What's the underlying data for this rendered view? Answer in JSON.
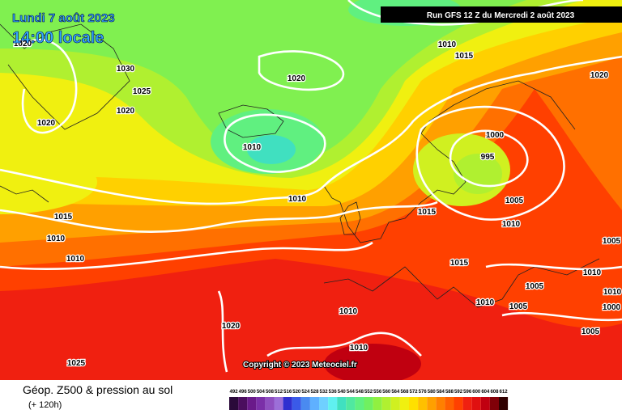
{
  "header": {
    "date": "Lundi 7 août 2023",
    "time": "14:00 locale",
    "run": "Run GFS 12 Z du Mercredi 2 août 2023"
  },
  "map": {
    "copyright": "Copyright © 2023 Meteociel.fr",
    "isobar_labels": [
      1020,
      1030,
      1025,
      1020,
      1020,
      1020,
      1010,
      1015,
      1020,
      1010,
      1000,
      995,
      1010,
      1015,
      1015,
      1005,
      1010,
      1010,
      1010,
      1005,
      1015,
      1010,
      1005,
      1010,
      1010,
      1005,
      1010,
      1000,
      1020,
      1005,
      1010,
      1025
    ]
  },
  "legend": {
    "title": "Géop. Z500 & pression au sol",
    "subtitle": "(+ 120h)",
    "scale": [
      {
        "value": 492,
        "color": "#2a0a3a"
      },
      {
        "value": 496,
        "color": "#4b0e5e"
      },
      {
        "value": 500,
        "color": "#6a1a8a"
      },
      {
        "value": 504,
        "color": "#7b2fa8"
      },
      {
        "value": 508,
        "color": "#8f4fc0"
      },
      {
        "value": 512,
        "color": "#9c6fd8"
      },
      {
        "value": 516,
        "color": "#2f2fd0"
      },
      {
        "value": 520,
        "color": "#3a5ae8"
      },
      {
        "value": 524,
        "color": "#4a8af0"
      },
      {
        "value": 528,
        "color": "#5fb0ff"
      },
      {
        "value": 532,
        "color": "#6fd0ff"
      },
      {
        "value": 536,
        "color": "#60f0f0"
      },
      {
        "value": 540,
        "color": "#40e0c0"
      },
      {
        "value": 544,
        "color": "#50e8a0"
      },
      {
        "value": 548,
        "color": "#60f080"
      },
      {
        "value": 552,
        "color": "#70f060"
      },
      {
        "value": 556,
        "color": "#90f040"
      },
      {
        "value": 560,
        "color": "#b0f030"
      },
      {
        "value": 564,
        "color": "#d0f020"
      },
      {
        "value": 568,
        "color": "#f0f010"
      },
      {
        "value": 572,
        "color": "#ffe000"
      },
      {
        "value": 576,
        "color": "#ffc000"
      },
      {
        "value": 580,
        "color": "#ffa000"
      },
      {
        "value": 584,
        "color": "#ff8000"
      },
      {
        "value": 588,
        "color": "#ff6000"
      },
      {
        "value": 592,
        "color": "#ff4000"
      },
      {
        "value": 596,
        "color": "#f02010"
      },
      {
        "value": 600,
        "color": "#e01010"
      },
      {
        "value": 604,
        "color": "#c00010"
      },
      {
        "value": 608,
        "color": "#800008"
      },
      {
        "value": 612,
        "color": "#300000"
      }
    ]
  }
}
